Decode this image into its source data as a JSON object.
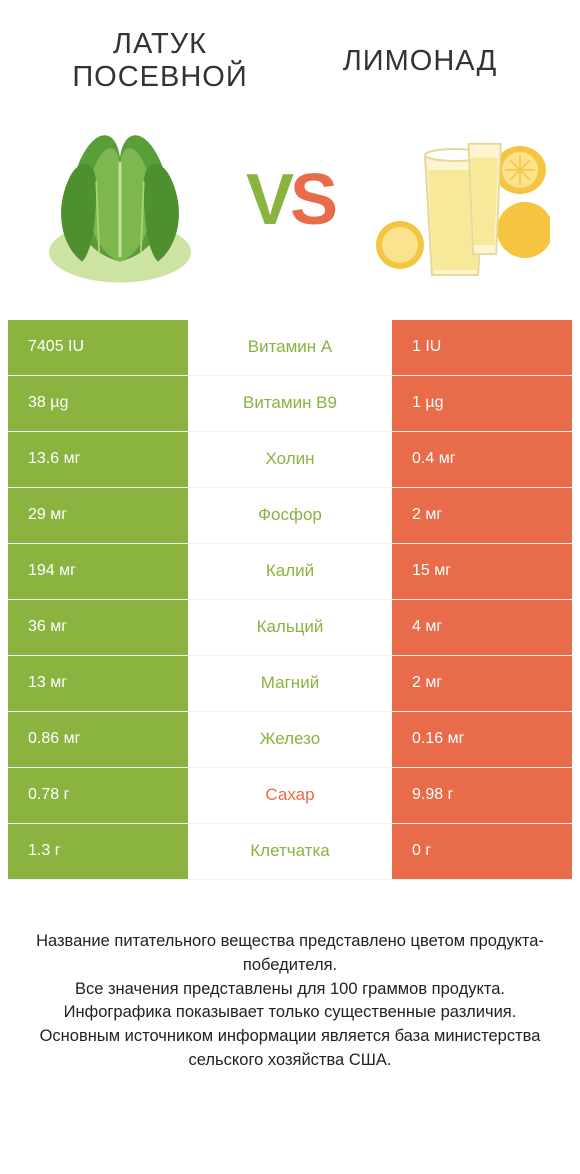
{
  "header": {
    "left_title": "ЛАТУК ПОСЕВНОЙ",
    "right_title": "ЛИМОНАД"
  },
  "vs": {
    "v": "V",
    "s": "S"
  },
  "colors": {
    "left_bg": "#8ab340",
    "right_bg": "#e86b4a",
    "left_text": "#8ab340",
    "right_text": "#e86b4a",
    "row_border": "#eeeeee"
  },
  "table": {
    "type": "comparison-table",
    "rows": [
      {
        "left": "7405 IU",
        "label": "Витамин A",
        "right": "1 IU",
        "winner": "left"
      },
      {
        "left": "38 µg",
        "label": "Витамин B9",
        "right": "1 µg",
        "winner": "left"
      },
      {
        "left": "13.6 мг",
        "label": "Холин",
        "right": "0.4 мг",
        "winner": "left"
      },
      {
        "left": "29 мг",
        "label": "Фосфор",
        "right": "2 мг",
        "winner": "left"
      },
      {
        "left": "194 мг",
        "label": "Калий",
        "right": "15 мг",
        "winner": "left"
      },
      {
        "left": "36 мг",
        "label": "Кальций",
        "right": "4 мг",
        "winner": "left"
      },
      {
        "left": "13 мг",
        "label": "Магний",
        "right": "2 мг",
        "winner": "left"
      },
      {
        "left": "0.86 мг",
        "label": "Железо",
        "right": "0.16 мг",
        "winner": "left"
      },
      {
        "left": "0.78 г",
        "label": "Сахар",
        "right": "9.98 г",
        "winner": "right"
      },
      {
        "left": "1.3 г",
        "label": "Клетчатка",
        "right": "0 г",
        "winner": "left"
      }
    ]
  },
  "footer": {
    "line1": "Название питательного вещества представлено цветом продукта-победителя.",
    "line2": "Все значения представлены для 100 граммов продукта.",
    "line3": "Инфографика показывает только существенные различия.",
    "line4": "Основным источником информации является база министерства сельского хозяйства США."
  }
}
